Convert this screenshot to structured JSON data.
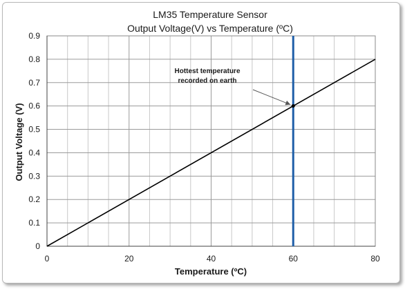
{
  "chart_data": {
    "type": "line",
    "title": "LM35 Temperature Sensor",
    "subtitle": "Output Voltage(V) vs Temperature (ºC)",
    "xlabel": "Temperature (ºC)",
    "ylabel": "Output Voltage (V)",
    "xlim": [
      0,
      80
    ],
    "ylim": [
      0,
      0.9
    ],
    "x_ticks": [
      "0",
      "20",
      "40",
      "60",
      "80"
    ],
    "y_ticks": [
      "0",
      "0.1",
      "0.2",
      "0.3",
      "0.4",
      "0.5",
      "0.6",
      "0.7",
      "0.8",
      "0.9"
    ],
    "grid": true,
    "series": [
      {
        "x": [
          0,
          80
        ],
        "y": [
          0,
          0.8
        ],
        "color": "#000000"
      }
    ],
    "reference_line": {
      "x": 60,
      "color": "#1f5fa8"
    },
    "highlight_point": {
      "x": 60,
      "y": 0.6
    },
    "annotation": {
      "lines": [
        "Hottest temperature",
        "recorded on earth"
      ],
      "points_to": {
        "x": 60,
        "y": 0.6
      }
    }
  }
}
